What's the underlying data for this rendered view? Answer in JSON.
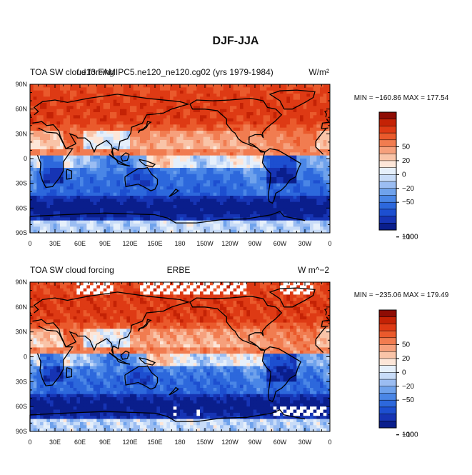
{
  "figure": {
    "title": "DJF-JJA"
  },
  "scale": {
    "levels": [
      -160,
      -110,
      -90,
      -70,
      -50,
      -35,
      -20,
      -10,
      0,
      10,
      20,
      35,
      50,
      70,
      90,
      110,
      160
    ],
    "colors": [
      "#0a1e8c",
      "#1634b4",
      "#1d4fd0",
      "#2d68dc",
      "#4a86e6",
      "#6fa2ec",
      "#9bbdf2",
      "#c8dcf8",
      "#e6f0fb",
      "#fde6d8",
      "#f9c4a8",
      "#f6a07c",
      "#f17c50",
      "#ea5a2c",
      "#de3a14",
      "#c42205",
      "#8e0c04"
    ],
    "ticks": [
      100,
      50,
      20,
      0,
      -20,
      -50,
      -100
    ],
    "tick_labels": [
      "100",
      "50",
      "20",
      "0",
      "−20",
      "−50",
      "−100"
    ]
  },
  "panels": [
    {
      "left_label": "TOA SW cloud forcing",
      "center_label": "f.e13.FAMIPC5.ne120_ne120.cg02 (yrs 1979-1984)",
      "units_label": "W/m²",
      "stats": "MIN = −160.86  MAX = 177.54",
      "missing_regions": false
    },
    {
      "left_label": "TOA SW cloud forcing",
      "center_label": "ERBE",
      "units_label": "W m^−2",
      "stats": "MIN = −235.06  MAX = 179.49",
      "missing_regions": true
    }
  ],
  "axes": {
    "lat_labels": [
      "90N",
      "60N",
      "30N",
      "0",
      "30S",
      "60S",
      "90S"
    ],
    "lon_labels": [
      "0",
      "30E",
      "60E",
      "90E",
      "120E",
      "150E",
      "180",
      "150W",
      "120W",
      "90W",
      "60W",
      "30W",
      "0"
    ]
  },
  "chart_data": {
    "type": "heatmap",
    "title": "DJF-JJA",
    "x": {
      "range": [
        0,
        360
      ],
      "tick_labels": [
        "0",
        "30E",
        "60E",
        "90E",
        "120E",
        "150E",
        "180",
        "150W",
        "120W",
        "90W",
        "60W",
        "30W",
        "0"
      ]
    },
    "y": {
      "range": [
        -90,
        90
      ],
      "tick_labels": [
        "90N",
        "60N",
        "30N",
        "0",
        "30S",
        "60S",
        "90S"
      ]
    },
    "panels": [
      {
        "name": "f.e13.FAMIPC5.ne120_ne120.cg02 (yrs 1979-1984)",
        "min": -160.86,
        "max": 177.54
      },
      {
        "name": "ERBE",
        "min": -235.06,
        "max": 179.49
      }
    ],
    "colorbar_ticks": [
      100,
      50,
      20,
      0,
      -20,
      -50,
      -100
    ]
  }
}
